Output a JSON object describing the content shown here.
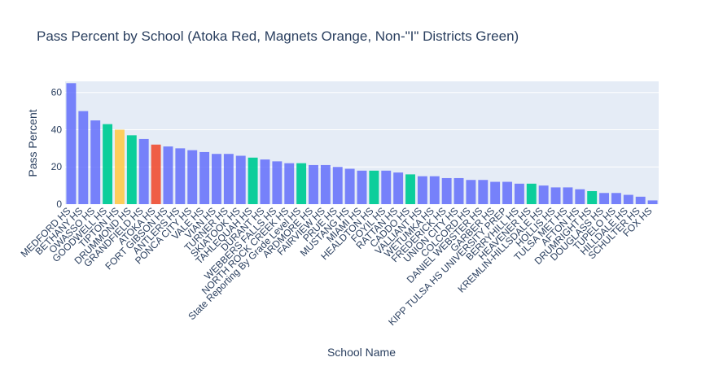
{
  "chart_data": {
    "type": "bar",
    "title": "Pass Percent by School (Atoka Red, Magnets Orange, Non-\"I\" Districts Green)",
    "xlabel": "School Name",
    "ylabel": "Pass Percent",
    "ylim": [
      0,
      66
    ],
    "yticks": [
      0,
      20,
      40,
      60
    ],
    "grid": true,
    "colors": {
      "default": "#636efa",
      "atoka": "#ef553b",
      "magnet": "#fecb52",
      "non_i": "#00cc96",
      "plot_bg": "#e5ecf6",
      "grid": "#ffffff",
      "text": "#2a3f5f"
    },
    "categories": [
      "MEDFORD HS",
      "BETHANY HS",
      "OWASSO HS",
      "GOODWELL HS",
      "TIPTON HS",
      "DRUMMOND HS",
      "GRANDFIELD HS",
      "ATOKA HS",
      "FORT GIBSON HS",
      "ANTLERS HS",
      "PONCA CITY HS",
      "VALE HS",
      "VIAN HS",
      "TURNER HS",
      "SKIATOOK HS",
      "TAHLEQUAH HS",
      "DURANT HS",
      "WEBBERS FALLS HS",
      "NORTH ROCK CREEK HS",
      "State Reporting By Grade Level HS",
      "ARDMORE HS",
      "FAIRVIEW HS",
      "PRUE HS",
      "MUSTANG HS",
      "MIAMI HS",
      "HEALDTON HS",
      "FOYIL HS",
      "RATTAN HS",
      "CADDO HS",
      "VALLIANT HS",
      "WETUMKA HS",
      "FREDERICK HS",
      "UNION CITY HS",
      "COLCORD HS",
      "DANIEL WEBSTER HS",
      "GARBER HS",
      "KIPP TULSA HS UNIVERSITY PREP",
      "BERRYHILL HS",
      "HEAVENER HS",
      "KREMLIN-HILLSDALE HS",
      "HOLLIS HS",
      "TULSA MET HS",
      "AFTON HS",
      "DRUMRIGHT HS",
      "DOUGLASS HS",
      "TUPELO HS",
      "HILLDALE HS",
      "SCHULTER HS",
      "FOX HS"
    ],
    "values": [
      65,
      50,
      45,
      43,
      40,
      37,
      35,
      32,
      31,
      30,
      29,
      28,
      27,
      27,
      26,
      25,
      24,
      23,
      22,
      22,
      21,
      21,
      20,
      19,
      18,
      18,
      18,
      17,
      16,
      15,
      15,
      14,
      14,
      13,
      13,
      12,
      12,
      11,
      11,
      10,
      9,
      9,
      8,
      7,
      6,
      6,
      5,
      4,
      2
    ],
    "highlights": {
      "ATOKA HS": "atoka",
      "TIPTON HS": "magnet",
      "GOODWELL HS": "non_i",
      "DRUMMOND HS": "non_i",
      "TAHLEQUAH HS": "non_i",
      "State Reporting By Grade Level HS": "non_i",
      "HEALDTON HS": "non_i",
      "CADDO HS": "non_i",
      "HEAVENER HS": "non_i",
      "DRUMRIGHT HS": "non_i"
    }
  }
}
